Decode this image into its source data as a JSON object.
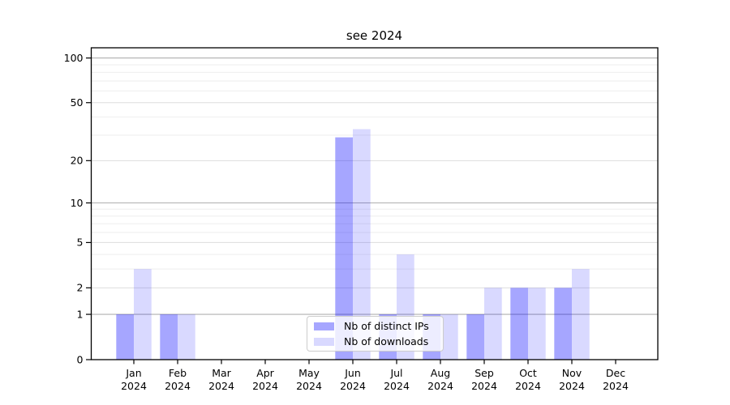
{
  "chart_data": {
    "type": "bar",
    "title": "see 2024",
    "categories": [
      "Jan",
      "Feb",
      "Mar",
      "Apr",
      "May",
      "Jun",
      "Jul",
      "Aug",
      "Sep",
      "Oct",
      "Nov",
      "Dec"
    ],
    "category_year": "2024",
    "series": [
      {
        "id": "distinct-ips",
        "name": "Nb of distinct IPs",
        "color": "#0000ff",
        "alpha": 0.35,
        "values": [
          1,
          1,
          0,
          0,
          0,
          29,
          1,
          1,
          1,
          2,
          2,
          0
        ]
      },
      {
        "id": "downloads",
        "name": "Nb of downloads",
        "color": "#0000ff",
        "alpha": 0.15,
        "values": [
          3,
          1,
          0,
          0,
          0,
          33,
          4,
          1,
          2,
          2,
          3,
          0
        ]
      }
    ],
    "yscale": "log1p",
    "ylim": [
      0,
      117
    ],
    "yticks": [
      0,
      1,
      2,
      5,
      10,
      20,
      50,
      100
    ],
    "grid": "on",
    "grid_major_ticks": [
      1,
      10,
      100
    ],
    "grid_mid_ticks": [
      2,
      5,
      20,
      50
    ],
    "grid_minor_ticks": [
      3,
      4,
      6,
      7,
      8,
      9,
      30,
      40,
      60,
      70,
      80,
      90
    ],
    "legend_position": "lower center",
    "axis_color": "#000000",
    "grid_major_color": "#b0b0b0",
    "grid_mid_color": "#dddddd",
    "grid_minor_color": "#eeeeee"
  }
}
